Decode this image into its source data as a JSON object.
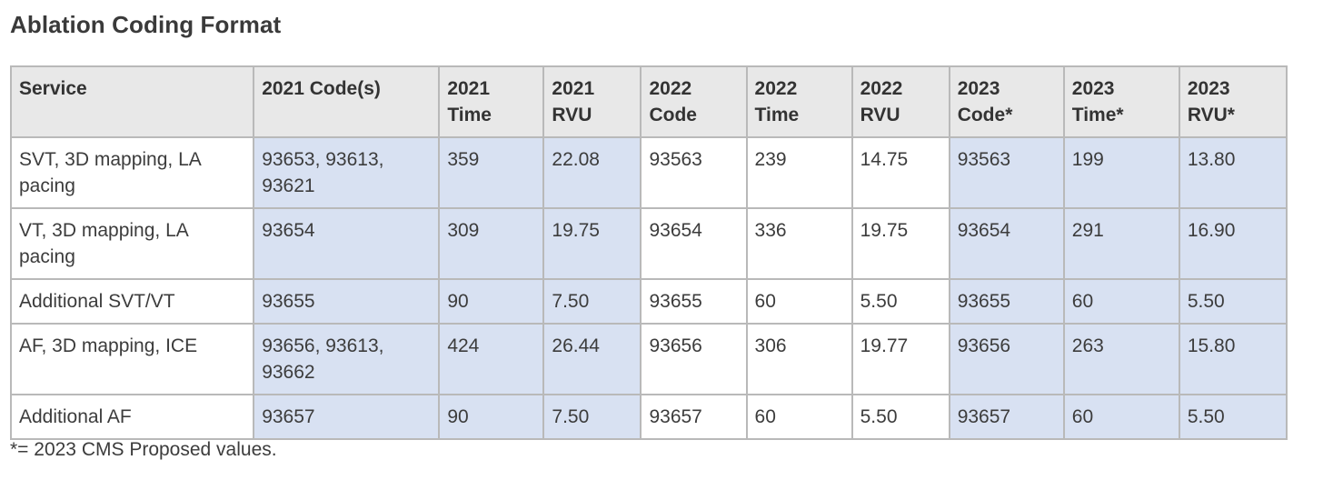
{
  "title": "Ablation Coding Format",
  "table": {
    "headers": [
      "Service",
      "2021 Code(s)",
      "2021 Time",
      "2021 RVU",
      "2022 Code",
      "2022 Time",
      "2022 RVU",
      "2023 Code*",
      "2023 Time*",
      "2023 RVU*"
    ],
    "rows": [
      [
        "SVT, 3D mapping, LA pacing",
        "93653, 93613, 93621",
        "359",
        "22.08",
        "93563",
        "239",
        "14.75",
        "93563",
        "199",
        "13.80"
      ],
      [
        "VT, 3D mapping, LA pacing",
        "93654",
        "309",
        "19.75",
        "93654",
        "336",
        "19.75",
        "93654",
        "291",
        "16.90"
      ],
      [
        "Additional SVT/VT",
        "93655",
        "90",
        "7.50",
        "93655",
        "60",
        "5.50",
        "93655",
        "60",
        "5.50"
      ],
      [
        "AF, 3D mapping, ICE",
        "93656, 93613, 93662",
        "424",
        "26.44",
        "93656",
        "306",
        "19.77",
        "93656",
        "263",
        "15.80"
      ],
      [
        "Additional AF",
        "93657",
        "90",
        "7.50",
        "93657",
        "60",
        "5.50",
        "93657",
        "60",
        "5.50"
      ]
    ]
  },
  "footnote": "*= 2023 CMS Proposed values.",
  "colors": {
    "header_bg": "#e8e8e8",
    "shaded_cell_bg": "#d8e1f2",
    "border": "#b9b9b9"
  }
}
